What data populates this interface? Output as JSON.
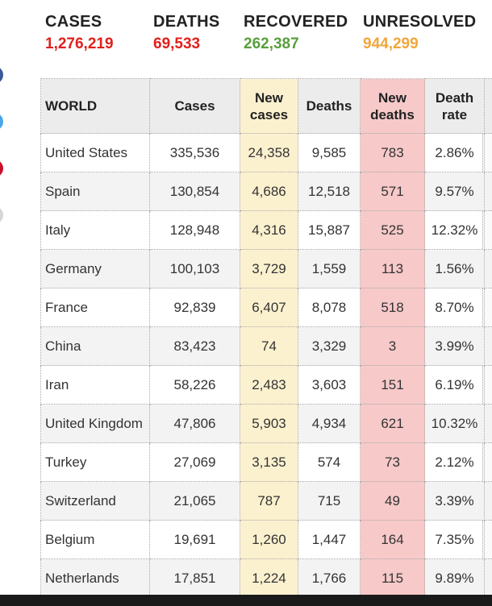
{
  "stats": {
    "cases": {
      "label": "CASES",
      "value": "1,276,219",
      "color": "#e0201c"
    },
    "deaths": {
      "label": "DEATHS",
      "value": "69,533",
      "color": "#e0201c"
    },
    "recovered": {
      "label": "RECOVERED",
      "value": "262,387",
      "color": "#5a9e3e"
    },
    "unresolved": {
      "label": "UNRESOLVED",
      "value": "944,299",
      "color": "#f2a63b"
    }
  },
  "table": {
    "headers": {
      "world": "WORLD",
      "cases": "Cases",
      "new_cases": "New cases",
      "deaths": "Deaths",
      "new_deaths": "New deaths",
      "death_rate": "Death rate"
    },
    "rows": [
      {
        "country": "United States",
        "cases": "335,536",
        "new_cases": "24,358",
        "deaths": "9,585",
        "new_deaths": "783",
        "death_rate": "2.86%"
      },
      {
        "country": "Spain",
        "cases": "130,854",
        "new_cases": "4,686",
        "deaths": "12,518",
        "new_deaths": "571",
        "death_rate": "9.57%"
      },
      {
        "country": "Italy",
        "cases": "128,948",
        "new_cases": "4,316",
        "deaths": "15,887",
        "new_deaths": "525",
        "death_rate": "12.32%"
      },
      {
        "country": "Germany",
        "cases": "100,103",
        "new_cases": "3,729",
        "deaths": "1,559",
        "new_deaths": "113",
        "death_rate": "1.56%"
      },
      {
        "country": "France",
        "cases": "92,839",
        "new_cases": "6,407",
        "deaths": "8,078",
        "new_deaths": "518",
        "death_rate": "8.70%"
      },
      {
        "country": "China",
        "cases": "83,423",
        "new_cases": "74",
        "deaths": "3,329",
        "new_deaths": "3",
        "death_rate": "3.99%"
      },
      {
        "country": "Iran",
        "cases": "58,226",
        "new_cases": "2,483",
        "deaths": "3,603",
        "new_deaths": "151",
        "death_rate": "6.19%"
      },
      {
        "country": "United Kingdom",
        "cases": "47,806",
        "new_cases": "5,903",
        "deaths": "4,934",
        "new_deaths": "621",
        "death_rate": "10.32%"
      },
      {
        "country": "Turkey",
        "cases": "27,069",
        "new_cases": "3,135",
        "deaths": "574",
        "new_deaths": "73",
        "death_rate": "2.12%"
      },
      {
        "country": "Switzerland",
        "cases": "21,065",
        "new_cases": "787",
        "deaths": "715",
        "new_deaths": "49",
        "death_rate": "3.39%"
      },
      {
        "country": "Belgium",
        "cases": "19,691",
        "new_cases": "1,260",
        "deaths": "1,447",
        "new_deaths": "164",
        "death_rate": "7.35%"
      },
      {
        "country": "Netherlands",
        "cases": "17,851",
        "new_cases": "1,224",
        "deaths": "1,766",
        "new_deaths": "115",
        "death_rate": "9.89%"
      }
    ]
  }
}
